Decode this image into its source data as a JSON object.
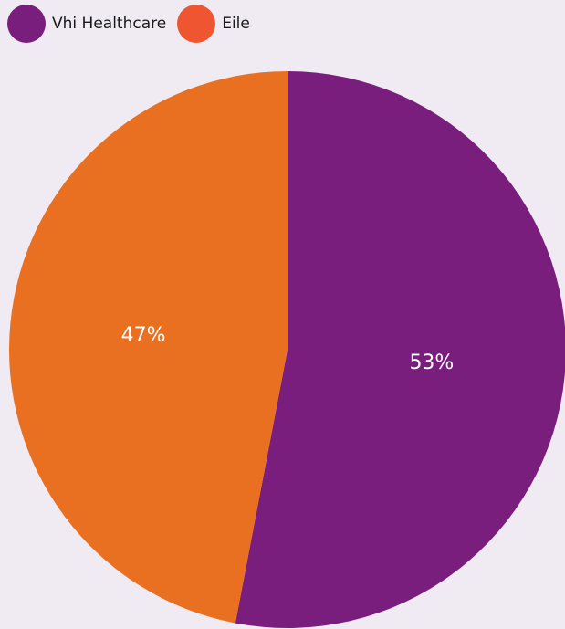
{
  "legend": {
    "items": [
      {
        "label": "Vhi Healthcare",
        "color": "#7a1e7d"
      },
      {
        "label": "Eile",
        "color": "#ee5530"
      }
    ]
  },
  "chart_data": {
    "type": "pie",
    "categories": [
      "Vhi Healthcare",
      "Eile"
    ],
    "values": [
      53,
      47
    ],
    "labels": [
      "53%",
      "47%"
    ],
    "colors": [
      "#7a1e7d",
      "#ea7021"
    ],
    "legend_position": "top-left"
  }
}
